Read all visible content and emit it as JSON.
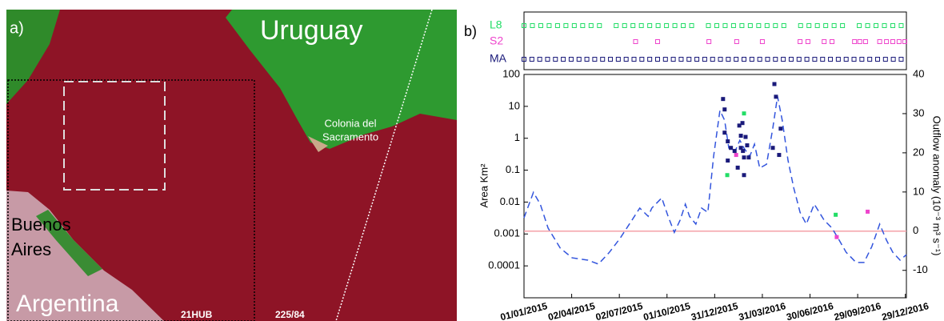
{
  "map_panel": {
    "panel_label": "a)",
    "country_top": "Uruguay",
    "city": [
      "Colonia del",
      "Sacramento"
    ],
    "city_left": [
      "Buenos",
      "Aires"
    ],
    "country_bottom": "Argentina",
    "tile": "21HUB",
    "path_row": "225/84"
  },
  "chart_data": {
    "type": "scatter",
    "panel_label": "b)",
    "ylabel": "Area Km²",
    "y2label": "Outflow anomaly (10⁻³ m³ s⁻¹)",
    "xlim": [
      "01/01/2015",
      "31/12/2016"
    ],
    "xticks": [
      "01/01/2015",
      "02/04/2015",
      "02/07/2015",
      "01/10/2015",
      "31/12/2015",
      "31/03/2016",
      "30/06/2016",
      "29/09/2016",
      "29/12/2016"
    ],
    "ylim": [
      1e-05,
      100
    ],
    "ylog": true,
    "yticks": [
      0.0001,
      0.001,
      0.01,
      0.1,
      1,
      10,
      100
    ],
    "y2lim": [
      -17,
      40
    ],
    "y2ticks": [
      -10,
      0,
      10,
      20,
      30,
      40
    ],
    "hline": {
      "value": 0,
      "axis": "y2",
      "color": "#f4a0a8"
    },
    "line": {
      "axis": "y2",
      "color": "#3355dd",
      "x": [
        "01/01/2015",
        "19/01/2015",
        "01/02/2015",
        "16/02/2015",
        "11/03/2015",
        "03/04/2015",
        "03/05/2015",
        "23/05/2015",
        "13/06/2015",
        "03/07/2015",
        "26/07/2015",
        "10/08/2015",
        "26/08/2015",
        "02/09/2015",
        "21/09/2015",
        "03/10/2015",
        "15/10/2015",
        "26/10/2015",
        "05/11/2015",
        "13/11/2015",
        "25/11/2015",
        "06/12/2015",
        "18/12/2015",
        "29/12/2015",
        "10/01/2016",
        "19/01/2016",
        "27/01/2016",
        "07/02/2016",
        "17/02/2016",
        "25/02/2016",
        "07/03/2016",
        "16/03/2016",
        "26/03/2016",
        "08/04/2016",
        "20/04/2016",
        "29/04/2016",
        "08/05/2016",
        "19/05/2016",
        "30/05/2016",
        "11/06/2016",
        "23/06/2016",
        "08/07/2016",
        "27/07/2016",
        "11/08/2016",
        "23/08/2016",
        "07/09/2016",
        "26/09/2016",
        "11/10/2016",
        "26/10/2016",
        "10/11/2016",
        "23/11/2016",
        "05/12/2016",
        "19/12/2016",
        "31/12/2016"
      ],
      "values": [
        3.4,
        9.9,
        6.9,
        0.8,
        -4.3,
        -6.8,
        -7.4,
        -8.4,
        -5.4,
        -1.9,
        2.8,
        5.9,
        3.8,
        5.9,
        8.5,
        3.8,
        -0.3,
        2.8,
        6.9,
        3.8,
        1.8,
        5.9,
        4.8,
        19.1,
        30.8,
        28.3,
        21.2,
        20.1,
        23.2,
        21.2,
        19.1,
        22.2,
        16.1,
        17.1,
        26.3,
        34.4,
        28.3,
        18.1,
        11.0,
        4.8,
        1.8,
        6.9,
        2.8,
        0.8,
        -1.9,
        -5.4,
        -8.0,
        -8.0,
        -3.9,
        1.8,
        -2.3,
        -5.4,
        -7.4,
        -6.0
      ]
    },
    "series": [
      {
        "name": "L8",
        "color": "#22dd66",
        "x": [
          "24/01/2016",
          "25/02/2016",
          "18/08/2016"
        ],
        "values": [
          0.07,
          6,
          0.004
        ],
        "acquisition_dates": [
          "01/01/2015",
          "17/01/2015",
          "02/02/2015",
          "18/02/2015",
          "06/03/2015",
          "22/03/2015",
          "07/04/2015",
          "23/04/2015",
          "09/05/2015",
          "25/05/2015",
          "26/06/2015",
          "12/07/2015",
          "28/07/2015",
          "13/08/2015",
          "29/08/2015",
          "14/09/2015",
          "30/09/2015",
          "16/10/2015",
          "01/11/2015",
          "17/11/2015",
          "19/12/2015",
          "04/01/2016",
          "20/01/2016",
          "05/02/2016",
          "21/02/2016",
          "08/03/2016",
          "24/03/2016",
          "09/04/2016",
          "25/04/2016",
          "11/05/2016",
          "12/06/2016",
          "28/06/2016",
          "14/07/2016",
          "30/07/2016",
          "15/08/2016",
          "31/08/2016",
          "02/10/2016",
          "18/10/2016",
          "03/11/2016",
          "19/11/2016",
          "05/12/2016",
          "21/12/2016"
        ]
      },
      {
        "name": "S2",
        "color": "#ee44cc",
        "x": [
          "10/02/2016",
          "20/08/2016",
          "18/10/2016"
        ],
        "values": [
          0.3,
          0.0008,
          0.005
        ],
        "acquisition_dates": [
          "02/08/2015",
          "13/09/2015",
          "20/12/2015",
          "11/02/2016",
          "31/03/2016",
          "11/06/2016",
          "26/06/2016",
          "27/07/2016",
          "11/08/2016",
          "23/09/2016",
          "03/10/2016",
          "14/10/2016",
          "10/11/2016",
          "23/11/2016",
          "05/12/2016",
          "17/12/2016",
          "28/12/2016"
        ]
      },
      {
        "name": "MA",
        "color": "#1a1a7a",
        "x": [
          "16/01/2016",
          "19/01/2016",
          "19/01/2016",
          "25/01/2016",
          "31/01/2016",
          "25/01/2016",
          "07/02/2016",
          "13/02/2016",
          "16/02/2016",
          "19/02/2016",
          "19/02/2016",
          "22/02/2016",
          "23/02/2016",
          "25/02/2016",
          "28/02/2016",
          "02/03/2016",
          "05/03/2016",
          "25/02/2016",
          "23/04/2016",
          "26/04/2016",
          "05/05/2016",
          "20/04/2016",
          "02/05/2016"
        ],
        "values": [
          17,
          8,
          1.5,
          0.8,
          0.5,
          0.2,
          0.4,
          0.12,
          2.5,
          0.5,
          1.2,
          3,
          0.4,
          0.25,
          1.1,
          0.6,
          0.25,
          0.07,
          50,
          20,
          2,
          0.5,
          0.3
        ],
        "acquisition_dates": [
          "01/01/2015",
          "16/01/2015",
          "31/01/2015",
          "15/02/2015",
          "02/03/2015",
          "17/03/2015",
          "01/04/2015",
          "16/04/2015",
          "01/05/2015",
          "16/05/2015",
          "31/05/2015",
          "15/06/2015",
          "30/06/2015",
          "15/07/2015",
          "30/07/2015",
          "14/08/2015",
          "29/08/2015",
          "13/09/2015",
          "28/09/2015",
          "13/10/2015",
          "28/10/2015",
          "12/11/2015",
          "27/11/2015",
          "12/12/2015",
          "27/12/2015",
          "11/01/2016",
          "26/01/2016",
          "10/02/2016",
          "25/02/2016",
          "11/03/2016",
          "26/03/2016",
          "10/04/2016",
          "25/04/2016",
          "10/05/2016",
          "25/05/2016",
          "09/06/2016",
          "24/06/2016",
          "09/07/2016",
          "24/07/2016",
          "08/08/2016",
          "23/08/2016",
          "07/09/2016",
          "22/09/2016",
          "07/10/2016",
          "22/10/2016",
          "06/11/2016",
          "21/11/2016",
          "06/12/2016",
          "21/12/2016"
        ]
      }
    ]
  }
}
